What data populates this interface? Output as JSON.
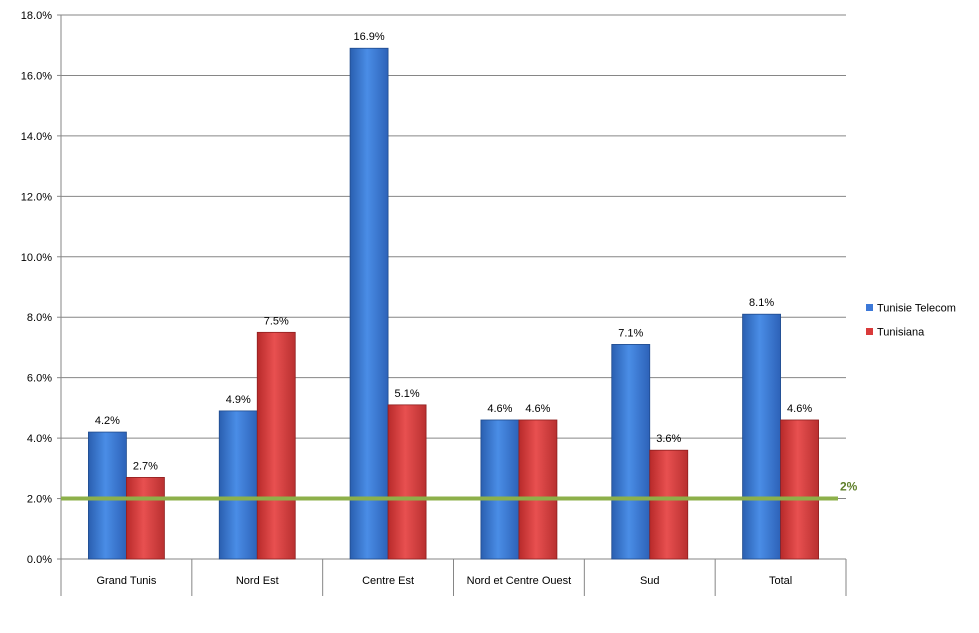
{
  "chart_data": {
    "type": "bar",
    "categories": [
      "Grand Tunis",
      "Nord Est",
      "Centre Est",
      "Nord et Centre Ouest",
      "Sud",
      "Total"
    ],
    "series": [
      {
        "name": "Tunisie Telecom",
        "values": [
          4.2,
          4.9,
          16.9,
          4.6,
          7.1,
          8.1
        ],
        "labels": [
          "4.2%",
          "4.9%",
          "16.9%",
          "4.6%",
          "7.1%",
          "8.1%"
        ],
        "color": "#3c78d8"
      },
      {
        "name": "Tunisiana",
        "values": [
          2.7,
          7.5,
          5.1,
          4.6,
          3.6,
          4.6
        ],
        "labels": [
          "2.7%",
          "7.5%",
          "5.1%",
          "4.6%",
          "3.6%",
          "4.6%"
        ],
        "color": "#d93a3a"
      }
    ],
    "ylim": [
      0,
      18
    ],
    "ytick_values": [
      0,
      2,
      4,
      6,
      8,
      10,
      12,
      14,
      16,
      18
    ],
    "ytick_labels": [
      "0.0%",
      "2.0%",
      "4.0%",
      "6.0%",
      "8.0%",
      "10.0%",
      "12.0%",
      "14.0%",
      "16.0%",
      "18.0%"
    ],
    "grid": true,
    "legend_position": "right",
    "reference_line": {
      "value": 2,
      "label": "2%",
      "color": "#8db04a",
      "label_color": "#5f7f2a"
    }
  }
}
